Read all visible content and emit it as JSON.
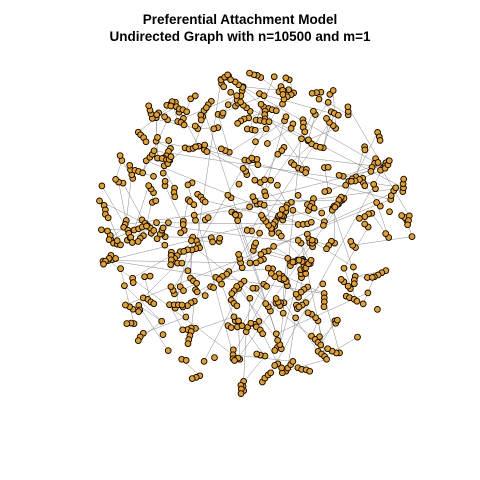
{
  "title": {
    "line1": "Preferential Attachment Model",
    "line2": "Undirected Graph with n=10500 and m=1"
  },
  "graph": {
    "model": "preferential-attachment",
    "directed": false,
    "n": 10500,
    "m": 1,
    "node_fill": "#e8a020",
    "node_stroke": "#000000",
    "edge_color": "#8a8a8a",
    "background": "#ffffff"
  }
}
